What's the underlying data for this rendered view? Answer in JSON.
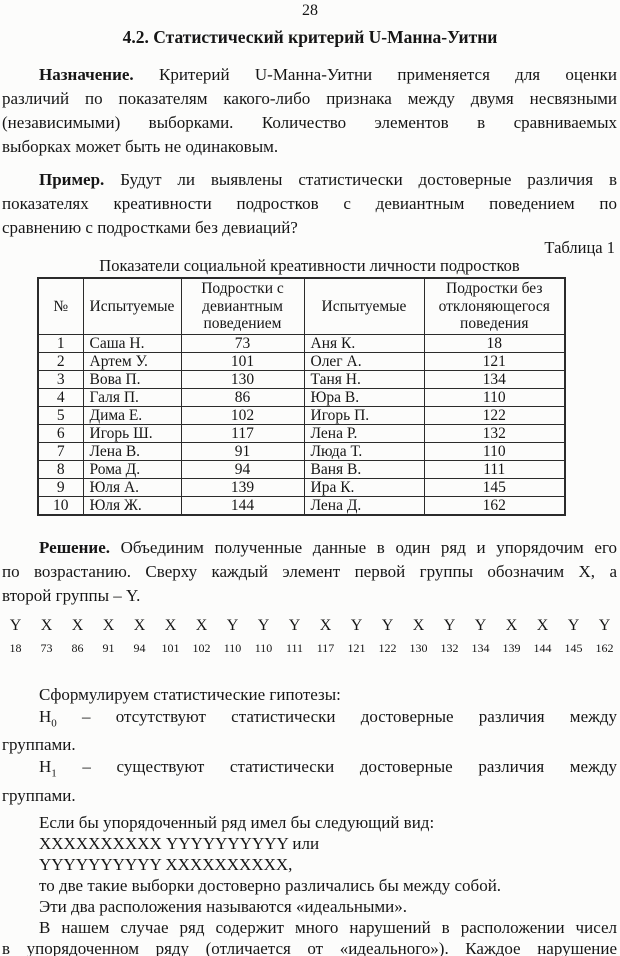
{
  "page_number": "28",
  "heading": "4.2. Статистический критерий U-Манна-Уитни",
  "purpose": {
    "lead": "Назначение.",
    "line1_rest": "Критерий U-Манна-Уитни применяется для оценки",
    "line2": "различий по показателям какого-либо признака между двумя несвязными",
    "line3": "(независимыми) выборками. Количество элементов в сравниваемых",
    "line4": "выборках может быть не одинаковым."
  },
  "example": {
    "lead": "Пример.",
    "line1_rest": "Будут ли выявлены статистически достоверные различия в",
    "line2": "показателях креативности подростков с девиантным поведением по",
    "line3": "сравнению с подростками без девиаций?"
  },
  "table_label": "Таблица 1",
  "table_caption": "Показатели социальной креативности личности подростков",
  "table": {
    "headers": [
      "№",
      "Испытуемые",
      "Подростки с девиантным поведением",
      "Испытуемые",
      "Подростки без отклоняющегося поведения"
    ],
    "rows": [
      [
        "1",
        "Саша Н.",
        "73",
        "Аня К.",
        "18"
      ],
      [
        "2",
        "Артем У.",
        "101",
        "Олег А.",
        "121"
      ],
      [
        "3",
        "Вова П.",
        "130",
        "Таня Н.",
        "134"
      ],
      [
        "4",
        "Галя П.",
        "86",
        "Юра В.",
        "110"
      ],
      [
        "5",
        "Дима Е.",
        "102",
        "Игорь П.",
        "122"
      ],
      [
        "6",
        "Игорь Ш.",
        "117",
        "Лена Р.",
        "132"
      ],
      [
        "7",
        "Лена В.",
        "91",
        "Люда Т.",
        "110"
      ],
      [
        "8",
        "Рома Д.",
        "94",
        "Ваня В.",
        "111"
      ],
      [
        "9",
        "Юля А.",
        "139",
        "Ира К.",
        "145"
      ],
      [
        "10",
        "Юля Ж.",
        "144",
        "Лена Д.",
        "162"
      ]
    ]
  },
  "solution": {
    "lead": "Решение.",
    "line1_rest": "Объединим полученные данные в один ряд и упорядочим его",
    "line2": "по возрастанию. Сверху каждый элемент первой группы обозначим X, а",
    "line3": "второй группы – Y."
  },
  "sequence": {
    "labels": [
      "Y",
      "X",
      "X",
      "X",
      "X",
      "X",
      "X",
      "Y",
      "Y",
      "Y",
      "X",
      "Y",
      "Y",
      "X",
      "Y",
      "Y",
      "X",
      "X",
      "Y",
      "Y"
    ],
    "values": [
      "18",
      "73",
      "86",
      "91",
      "94",
      "101",
      "102",
      "110",
      "110",
      "111",
      "117",
      "121",
      "122",
      "130",
      "132",
      "134",
      "139",
      "144",
      "145",
      "162"
    ]
  },
  "hypotheses": {
    "intro": "Сформулируем статистические гипотезы:",
    "h0_sym": "Н",
    "h0_sub": "0",
    "h0_rest": "– отсутствуют статистически достоверные различия между",
    "h0_line2": "группами.",
    "h1_sym": "Н",
    "h1_sub": "1",
    "h1_rest": "– существуют статистически достоверные различия между",
    "h1_line2": "группами."
  },
  "ideal": {
    "lines": [
      "Если бы упорядоченный ряд имел бы следующий вид:",
      "ХХХХХХХХХХ YYYYYYYYYY или",
      "YYYYYYYYYY ХХХХХХХХХХ,",
      "то две такие выборки достоверно различались бы между собой.",
      "Эти два расположения называются «идеальными».",
      "В нашем случае ряд содержит много нарушений в расположении чисел",
      "в упорядоченном ряду (отличается от «идеального»). Каждое нарушение"
    ]
  }
}
